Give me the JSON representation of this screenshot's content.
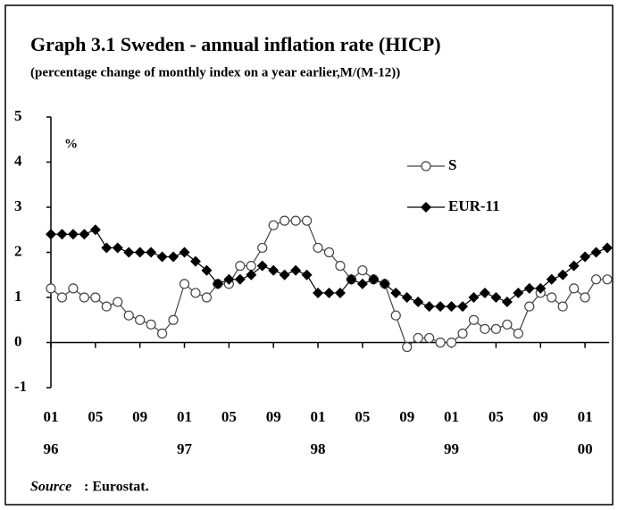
{
  "chart_data": {
    "type": "line",
    "title": "Graph 3.1  Sweden - annual inflation rate (HICP)",
    "subtitle": "(percentage change of monthly index on a year earlier,M/(M-12))",
    "y_unit_label": "%",
    "categories": [
      "01",
      null,
      null,
      null,
      "05",
      null,
      null,
      null,
      "09",
      null,
      null,
      null,
      "01",
      null,
      null,
      null,
      "05",
      null,
      null,
      null,
      "09",
      null,
      null,
      null,
      "01",
      null,
      null,
      null,
      "05",
      null,
      null,
      null,
      "09",
      null,
      null,
      null,
      "01",
      null,
      null,
      null,
      "05",
      null,
      null,
      null,
      "09",
      null,
      null,
      null,
      "01",
      null,
      null
    ],
    "x_year_labels": [
      "96",
      "97",
      "98",
      "99",
      "00"
    ],
    "series": [
      {
        "name": "S",
        "color": "#444444",
        "marker": "circle",
        "values": [
          1.2,
          1.0,
          1.2,
          1.0,
          1.0,
          0.8,
          0.9,
          0.6,
          0.5,
          0.4,
          0.2,
          0.5,
          1.3,
          1.1,
          1.0,
          1.3,
          1.3,
          1.7,
          1.7,
          2.1,
          2.6,
          2.7,
          2.7,
          2.7,
          2.1,
          2.0,
          1.7,
          1.4,
          1.6,
          1.4,
          1.3,
          0.6,
          -0.1,
          0.1,
          0.1,
          0.0,
          0.0,
          0.2,
          0.5,
          0.3,
          0.3,
          0.4,
          0.2,
          0.8,
          1.1,
          1.0,
          0.8,
          1.2,
          1.0,
          1.4,
          1.4
        ]
      },
      {
        "name": "EUR-11",
        "color": "#000000",
        "marker": "diamond",
        "values": [
          2.4,
          2.4,
          2.4,
          2.4,
          2.5,
          2.1,
          2.1,
          2.0,
          2.0,
          2.0,
          1.9,
          1.9,
          2.0,
          1.8,
          1.6,
          1.3,
          1.4,
          1.4,
          1.5,
          1.7,
          1.6,
          1.5,
          1.6,
          1.5,
          1.1,
          1.1,
          1.1,
          1.4,
          1.3,
          1.4,
          1.3,
          1.1,
          1.0,
          0.9,
          0.8,
          0.8,
          0.8,
          0.8,
          1.0,
          1.1,
          1.0,
          0.9,
          1.1,
          1.2,
          1.2,
          1.4,
          1.5,
          1.7,
          1.9,
          2.0,
          2.1
        ]
      }
    ],
    "ylim": [
      -1,
      5
    ],
    "yticks": [
      -1,
      0,
      1,
      2,
      3,
      4,
      5
    ],
    "source_label": "Source",
    "source_text": ": Eurostat."
  }
}
